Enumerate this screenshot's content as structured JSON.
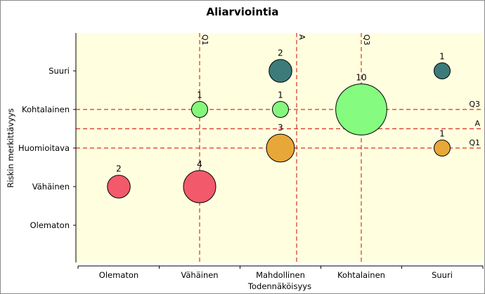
{
  "chart_data": {
    "type": "bubble",
    "title": "Aliarviointia",
    "xlabel": "Todennäköisyys",
    "ylabel": "Riskin merkittävyys",
    "x_categories": [
      "Olematon",
      "Vähäinen",
      "Mahdollinen",
      "Kohtalainen",
      "Suuri"
    ],
    "y_categories": [
      "Olematon",
      "Vähäinen",
      "Huomioitava",
      "Kohtalainen",
      "Suuri"
    ],
    "grid": false,
    "bubbles": [
      {
        "x": "Olematon",
        "y": "Vähäinen",
        "value": 2,
        "label": "2",
        "color": "#f25a6b"
      },
      {
        "x": "Vähäinen",
        "y": "Vähäinen",
        "value": 4,
        "label": "4",
        "color": "#f25a6b"
      },
      {
        "x": "Vähäinen",
        "y": "Kohtalainen",
        "value": 1,
        "label": "1",
        "color": "#85f77d"
      },
      {
        "x": "Mahdollinen",
        "y": "Kohtalainen",
        "value": 1,
        "label": "1",
        "color": "#85f77d"
      },
      {
        "x": "Mahdollinen",
        "y": "Huomioitava",
        "value": 3,
        "label": "3",
        "color": "#e8a838"
      },
      {
        "x": "Mahdollinen",
        "y": "Suuri",
        "value": 2,
        "label": "2",
        "color": "#3d7b7a"
      },
      {
        "x": "Kohtalainen",
        "y": "Kohtalainen",
        "value": 10,
        "label": "10",
        "color": "#85fc7f"
      },
      {
        "x": "Suuri",
        "y": "Suuri",
        "value": 1,
        "label": "1",
        "color": "#3d7b7a"
      },
      {
        "x": "Suuri",
        "y": "Huomioitava",
        "value": 1,
        "label": "1",
        "color": "#e8a838"
      }
    ],
    "reference_lines": {
      "vertical": [
        {
          "label": "Q1",
          "value": 2.0
        },
        {
          "label": "A",
          "value": 3.2
        },
        {
          "label": "Q3",
          "value": 4.0
        }
      ],
      "horizontal": [
        {
          "label": "Q3",
          "value": 4.0
        },
        {
          "label": "A",
          "value": 3.5
        },
        {
          "label": "Q1",
          "value": 3.0
        }
      ]
    },
    "colors": {
      "plot_background": "#ffffe0",
      "reference_line": "#d93020",
      "bubble_outline": "#000000"
    }
  }
}
